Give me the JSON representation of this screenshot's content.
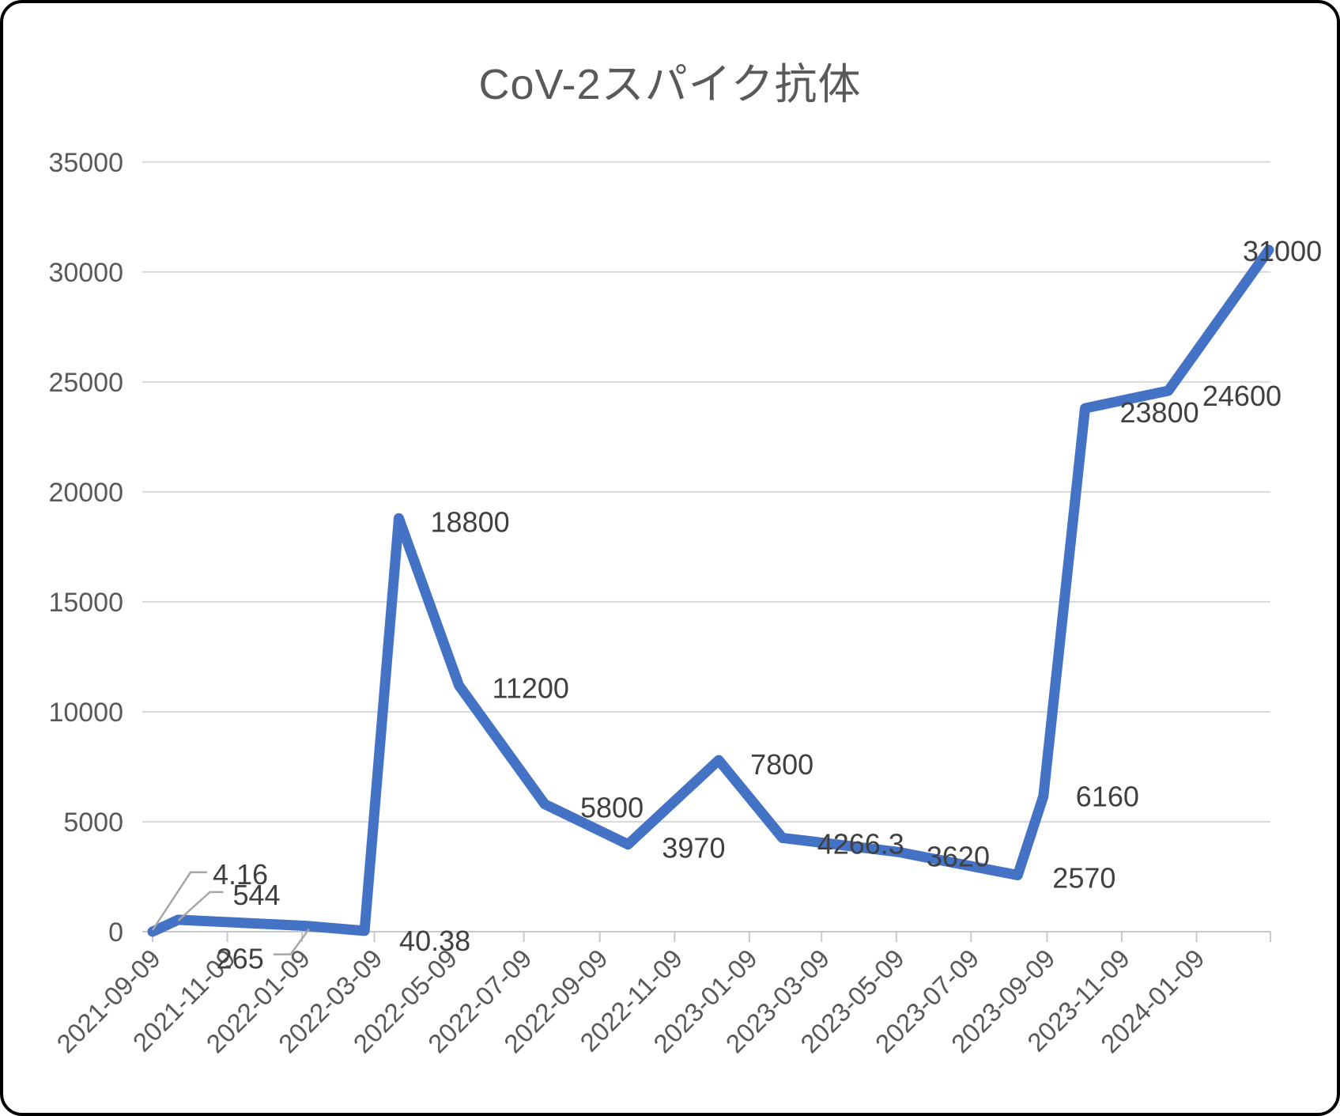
{
  "window": {
    "title": "CoV-2スパイク抗体"
  },
  "chart_data": {
    "type": "line",
    "title": "CoV-2スパイク抗体",
    "legend": false,
    "grid": true,
    "x_axis": {
      "kind": "date",
      "start": "2021-09-09",
      "end_extent": "2024-03-08",
      "tick_interval": "2 months",
      "tick_label_angle": -45,
      "tick_labels": [
        "2021-09-09",
        "2021-11-09",
        "2022-01-09",
        "2022-03-09",
        "2022-05-09",
        "2022-07-09",
        "2022-09-09",
        "2022-11-09",
        "2023-01-09",
        "2023-03-09",
        "2023-05-09",
        "2023-07-09",
        "2023-09-09",
        "2023-11-09",
        "2024-01-09"
      ]
    },
    "y_axis": {
      "min": 0,
      "max": 35000,
      "step": 5000,
      "tick_labels": [
        "0",
        "5000",
        "10000",
        "15000",
        "20000",
        "25000",
        "30000",
        "35000"
      ]
    },
    "series": [
      {
        "name": "CoV-2スパイク抗体",
        "color": "#4472C4",
        "points": [
          {
            "date_est": "2021-09-09",
            "value": 4.16,
            "label": "4.16",
            "label_anchor": "start",
            "label_dx": 76,
            "label_dy": -60,
            "leader": [
              [
                0,
                -2
              ],
              [
                48,
                -75
              ],
              [
                69,
                -75
              ]
            ]
          },
          {
            "date_est": "2021-09-30",
            "value": 544,
            "label": "544",
            "label_anchor": "start",
            "label_dx": 69,
            "label_dy": -19,
            "leader": [
              [
                0,
                1
              ],
              [
                40,
                -35
              ],
              [
                57,
                -35
              ]
            ]
          },
          {
            "date_est": "2022-01-12",
            "value": 265,
            "label": "265",
            "label_anchor": "middle",
            "label_dx": -83,
            "label_dy": 54,
            "leader": [
              [
                4,
                4
              ],
              [
                -19,
                36
              ],
              [
                -41,
                36
              ]
            ]
          },
          {
            "date_est": "2022-03-01",
            "value": 40.38,
            "label": "40.38",
            "label_anchor": "middle",
            "label_dx": 89,
            "label_dy": 25
          },
          {
            "date_est": "2022-03-29",
            "value": 18800,
            "label": "18800",
            "label_anchor": "start",
            "label_dx": 40,
            "label_dy": 17
          },
          {
            "date_est": "2022-05-17",
            "value": 11200,
            "label": "11200",
            "label_anchor": "start",
            "label_dx": 42,
            "label_dy": 16
          },
          {
            "date_est": "2022-07-26",
            "value": 5800,
            "label": "5800",
            "label_anchor": "start",
            "label_dx": 45,
            "label_dy": 17
          },
          {
            "date_est": "2022-10-02",
            "value": 3970,
            "label": "3970",
            "label_anchor": "start",
            "label_dx": 43,
            "label_dy": 17
          },
          {
            "date_est": "2022-12-15",
            "value": 7800,
            "label": "7800",
            "label_anchor": "start",
            "label_dx": 40,
            "label_dy": 18
          },
          {
            "date_est": "2023-02-05",
            "value": 4266.3,
            "label": "4266.3",
            "label_anchor": "start",
            "label_dx": 44,
            "label_dy": 20
          },
          {
            "date_est": "2023-05-11",
            "value": 3620,
            "label": "3620",
            "label_anchor": "start",
            "label_dx": 35,
            "label_dy": 18
          },
          {
            "date_est": "2023-08-16",
            "value": 2570,
            "label": "2570",
            "label_anchor": "start",
            "label_dx": 44,
            "label_dy": 16
          },
          {
            "date_est": "2023-09-06",
            "value": 6160,
            "label": "6160",
            "label_anchor": "start",
            "label_dx": 41,
            "label_dy": 13
          },
          {
            "date_est": "2023-10-10",
            "value": 23800,
            "label": "23800",
            "label_anchor": "start",
            "label_dx": 44,
            "label_dy": 18
          },
          {
            "date_est": "2023-12-17",
            "value": 24600,
            "label": "24600",
            "label_anchor": "start",
            "label_dx": 43,
            "label_dy": 19
          },
          {
            "date_est": "2024-03-08",
            "value": 31000,
            "label": "31000",
            "label_anchor": "start",
            "label_dx": -33,
            "label_dy": 14
          }
        ]
      }
    ],
    "colors": {
      "line": "#4472C4",
      "title_text": "#595959",
      "axis_text": "#595959",
      "label_text": "#404040",
      "gridline": "#D9D9D9",
      "axis_line": "#C9C9C9",
      "leader": "#A6A6A6",
      "background": "#FFFFFF",
      "frame_border": "#000000"
    }
  }
}
